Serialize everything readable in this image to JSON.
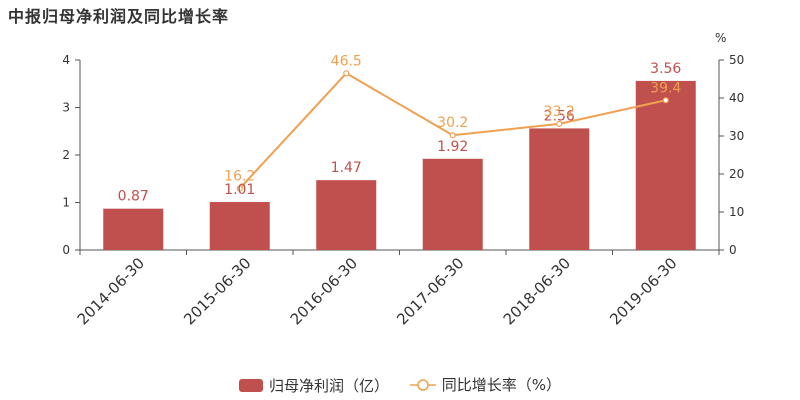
{
  "title": "中报归母净利润及同比增长率",
  "chart_data": {
    "type": "bar",
    "categories": [
      "2014-06-30",
      "2015-06-30",
      "2016-06-30",
      "2017-06-30",
      "2018-06-30",
      "2019-06-30"
    ],
    "series": [
      {
        "name": "归母净利润（亿）",
        "type": "bar",
        "axis": "left",
        "values": [
          0.87,
          1.01,
          1.47,
          1.92,
          2.56,
          3.56
        ],
        "labels": [
          "0.87",
          "1.01",
          "1.47",
          "1.92",
          "2.56",
          "3.56"
        ],
        "color": "#c0504d"
      },
      {
        "name": "同比增长率（%）",
        "type": "line",
        "axis": "right",
        "values": [
          null,
          16.2,
          46.5,
          30.2,
          33.2,
          39.4
        ],
        "labels": [
          "",
          "16.2",
          "46.5",
          "30.2",
          "33.2",
          "39.4"
        ],
        "color": "#f0a050"
      }
    ],
    "y_left": {
      "min": 0,
      "max": 4,
      "ticks": [
        "0",
        "1",
        "2",
        "3",
        "4"
      ]
    },
    "y_right": {
      "min": 0,
      "max": 50,
      "ticks": [
        "0",
        "10",
        "20",
        "30",
        "40",
        "50"
      ],
      "unit": "%"
    },
    "grid": false,
    "legend_position": "bottom"
  }
}
